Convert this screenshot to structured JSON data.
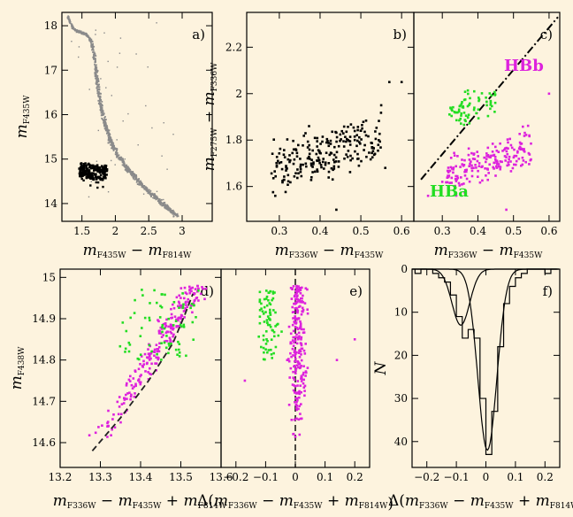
{
  "colors": {
    "background": "#fdf3de",
    "hba": "#22dd22",
    "hbb": "#dd22dd",
    "rgb": "#8a8a8a",
    "black": "#000000"
  },
  "labels": {
    "hbb": "HBb",
    "hba": "HBa",
    "m": "m",
    "minus": "−",
    "plus": "+",
    "delta": "Δ(",
    "close": ")",
    "f435": "F435W",
    "f814": "F814W",
    "f336": "F336W",
    "f275": "F275W",
    "f438": "F438W",
    "N": "N"
  },
  "chart_data": [
    {
      "panel": "a)",
      "type": "scatter",
      "xlabel": "mF435W − mF814W",
      "ylabel": "mF435W",
      "xlim": [
        1.2,
        3.45
      ],
      "ylim": [
        18.3,
        13.6
      ],
      "xticks": [
        1.5,
        2,
        2.5,
        3
      ],
      "xtick_labels": [
        "1.5",
        "2",
        "2.5",
        "3"
      ],
      "yticks": [
        14,
        15,
        16,
        17,
        18
      ],
      "ytick_labels": [
        "14",
        "15",
        "16",
        "17",
        "18"
      ],
      "series": [
        {
          "kind": "sequence",
          "color": "#8a8a8a",
          "x": [
            1.28,
            1.33,
            1.38,
            1.46,
            1.56,
            1.64,
            1.69,
            1.72,
            1.75,
            1.8,
            1.86,
            1.93,
            2.03,
            2.17,
            2.33,
            2.52,
            2.72,
            2.92
          ],
          "y": [
            18.25,
            18.05,
            17.92,
            17.86,
            17.82,
            17.65,
            17.3,
            16.9,
            16.5,
            16.1,
            15.72,
            15.4,
            15.1,
            14.8,
            14.52,
            14.25,
            13.98,
            13.72
          ]
        },
        {
          "kind": "horizontal-branch",
          "color": "#000000",
          "x": [
            1.48,
            1.52,
            1.56,
            1.6,
            1.64,
            1.68,
            1.72,
            1.76,
            1.8,
            1.84
          ],
          "y": [
            14.6,
            14.75,
            14.7,
            14.62,
            14.78,
            14.66,
            14.72,
            14.8,
            14.55,
            14.7
          ]
        }
      ]
    },
    {
      "panel": "b)",
      "type": "scatter",
      "xlabel": "mF336W − mF435W",
      "ylabel": "mF275W − mF336W",
      "xlim": [
        0.22,
        0.63
      ],
      "ylim": [
        2.35,
        1.45
      ],
      "xticks": [
        0.3,
        0.4,
        0.5,
        0.6
      ],
      "xtick_labels": [
        "0.3",
        "0.4",
        "0.5",
        "0.6"
      ],
      "yticks": [
        1.6,
        1.8,
        2.0,
        2.2
      ],
      "ytick_labels": [
        "1.6",
        "1.8",
        "2",
        "2.2"
      ],
      "series": [
        {
          "kind": "hb-stars",
          "color": "#000000",
          "x": [
            0.29,
            0.32,
            0.34,
            0.36,
            0.38,
            0.4,
            0.41,
            0.42,
            0.43,
            0.44,
            0.45,
            0.46,
            0.47,
            0.48,
            0.5,
            0.53
          ],
          "y": [
            1.75,
            1.9,
            1.82,
            2.0,
            1.78,
            1.85,
            1.95,
            1.72,
            1.88,
            2.05,
            1.8,
            1.92,
            1.86,
            2.02,
            1.9,
            1.98
          ]
        }
      ]
    },
    {
      "panel": "c)",
      "type": "scatter",
      "xlabel": "mF336W − mF435W",
      "xlim": [
        0.22,
        0.63
      ],
      "ylim": [
        2.35,
        1.45
      ],
      "xticks": [
        0.3,
        0.4,
        0.5,
        0.6
      ],
      "xtick_labels": [
        "0.3",
        "0.4",
        "0.5",
        "0.6"
      ],
      "separator": {
        "x": [
          0.24,
          0.625
        ],
        "y": [
          1.63,
          2.33
        ]
      },
      "series": [
        {
          "name": "HBb",
          "color": "#dd22dd",
          "x": [
            0.33,
            0.36,
            0.38,
            0.4,
            0.42,
            0.44,
            0.46,
            0.48,
            0.5,
            0.52
          ],
          "y": [
            1.7,
            1.78,
            1.66,
            1.82,
            1.74,
            1.86,
            1.7,
            1.8,
            1.88,
            1.76
          ]
        },
        {
          "name": "HBa",
          "color": "#22dd22",
          "x": [
            0.33,
            0.35,
            0.37,
            0.39,
            0.41,
            0.43
          ],
          "y": [
            1.96,
            2.05,
            1.92,
            2.1,
            2.0,
            1.95
          ]
        }
      ]
    },
    {
      "panel": "d)",
      "type": "scatter",
      "xlabel": "mF336W − mF435W + mF814W",
      "ylabel": "mF435W",
      "xlim": [
        13.2,
        13.6
      ],
      "ylim": [
        15.02,
        14.54
      ],
      "xticks": [
        13.2,
        13.3,
        13.4,
        13.5,
        13.6
      ],
      "xtick_labels": [
        "13.2",
        "13.3",
        "13.4",
        "13.5",
        "13.6"
      ],
      "yticks": [
        14.6,
        14.7,
        14.8,
        14.9,
        15.0
      ],
      "ytick_labels": [
        "14.6",
        "14.7",
        "14.8",
        "14.9",
        "15"
      ],
      "fiducial": {
        "x": [
          13.28,
          13.35,
          13.42,
          13.48,
          13.51,
          13.53
        ],
        "y": [
          14.58,
          14.66,
          14.75,
          14.84,
          14.91,
          14.96
        ]
      },
      "series": [
        {
          "name": "HBb",
          "color": "#dd22dd",
          "x": [
            13.3,
            13.38,
            13.42,
            13.46,
            13.48,
            13.5,
            13.52,
            13.54
          ],
          "y": [
            14.62,
            14.7,
            14.76,
            14.8,
            14.85,
            14.88,
            14.92,
            14.86
          ]
        },
        {
          "name": "HBa",
          "color": "#22dd22",
          "x": [
            13.35,
            13.4,
            13.44,
            13.47,
            13.5
          ],
          "y": [
            14.82,
            14.88,
            14.92,
            14.9,
            14.95
          ]
        }
      ]
    },
    {
      "panel": "e)",
      "type": "scatter",
      "xlabel": "Δ(mF336W − mF435W + mF814W)",
      "xlim": [
        -0.25,
        0.25
      ],
      "ylim": [
        15.02,
        14.54
      ],
      "xticks": [
        -0.2,
        -0.1,
        0,
        0.1,
        0.2
      ],
      "xtick_labels": [
        "−0.2",
        "−0.1",
        "0",
        "0.1",
        "0.2"
      ],
      "series": [
        {
          "name": "HBb",
          "color": "#dd22dd",
          "x": [
            -0.02,
            0.0,
            0.02,
            0.04,
            0.01,
            -0.01
          ],
          "y": [
            14.75,
            14.82,
            14.86,
            14.9,
            14.93,
            14.8
          ]
        },
        {
          "name": "HBa",
          "color": "#22dd22",
          "x": [
            -0.12,
            -0.09,
            -0.07,
            -0.05
          ],
          "y": [
            14.86,
            14.9,
            14.94,
            14.88
          ]
        }
      ]
    },
    {
      "panel": "f)",
      "type": "bar",
      "xlabel": "Δ(mF336W − mF435W + mF814W)",
      "ylabel": "N",
      "xlim": [
        -0.25,
        0.25
      ],
      "ylim": [
        0,
        46
      ],
      "xticks": [
        -0.2,
        -0.1,
        0,
        0.1,
        0.2
      ],
      "xtick_labels": [
        "−0.2",
        "−0.1",
        "0",
        "0.1",
        "0.2"
      ],
      "yticks": [
        0,
        10,
        20,
        30,
        40
      ],
      "ytick_labels": [
        "0",
        "10",
        "20",
        "30",
        "40"
      ],
      "bin_width": 0.02,
      "bin_left": [
        -0.24,
        -0.22,
        -0.2,
        -0.18,
        -0.16,
        -0.14,
        -0.12,
        -0.1,
        -0.08,
        -0.06,
        -0.04,
        -0.02,
        0.0,
        0.02,
        0.04,
        0.06,
        0.08,
        0.1,
        0.12,
        0.14,
        0.16,
        0.18,
        0.2,
        0.22
      ],
      "series": [
        {
          "name": "HBa",
          "color": "#22dd22",
          "values": [
            1,
            0,
            0,
            1,
            2,
            3,
            6,
            10,
            14,
            9,
            4,
            2,
            1,
            0,
            0,
            0,
            0,
            0,
            0,
            0,
            0,
            0,
            0,
            0
          ]
        },
        {
          "name": "HBb",
          "color": "#dd22dd",
          "values": [
            0,
            0,
            0,
            0,
            0,
            0,
            0,
            1,
            2,
            5,
            12,
            28,
            42,
            33,
            18,
            8,
            4,
            2,
            1,
            0,
            0,
            0,
            1,
            0
          ]
        },
        {
          "name": "all",
          "color": "#000000",
          "values": [
            1,
            0,
            0,
            1,
            2,
            3,
            6,
            11,
            16,
            14,
            16,
            30,
            43,
            33,
            18,
            8,
            4,
            2,
            1,
            0,
            0,
            0,
            1,
            0
          ]
        }
      ]
    }
  ]
}
